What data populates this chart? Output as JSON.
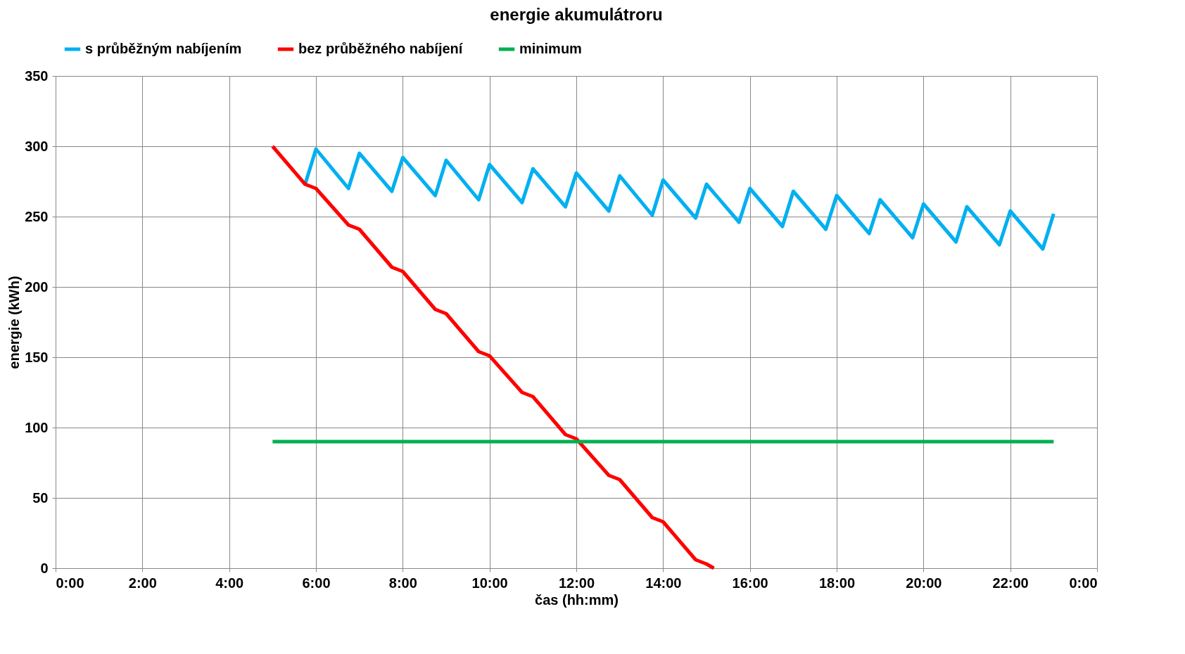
{
  "chart_data": {
    "type": "line",
    "title": "energie akumulátroru",
    "xlabel": "čas (hh:mm)",
    "ylabel": "energie (kWh)",
    "xlim": [
      0,
      24
    ],
    "xticks": [
      {
        "value": 0,
        "label": "0:00"
      },
      {
        "value": 2,
        "label": "2:00"
      },
      {
        "value": 4,
        "label": "4:00"
      },
      {
        "value": 6,
        "label": "6:00"
      },
      {
        "value": 8,
        "label": "8:00"
      },
      {
        "value": 10,
        "label": "10:00"
      },
      {
        "value": 12,
        "label": "12:00"
      },
      {
        "value": 14,
        "label": "14:00"
      },
      {
        "value": 16,
        "label": "16:00"
      },
      {
        "value": 18,
        "label": "18:00"
      },
      {
        "value": 20,
        "label": "20:00"
      },
      {
        "value": 22,
        "label": "22:00"
      },
      {
        "value": 24,
        "label": "0:00"
      }
    ],
    "ylim": [
      0,
      350
    ],
    "yticks": [
      0,
      50,
      100,
      150,
      200,
      250,
      300,
      350
    ],
    "grid": true,
    "legend": "top",
    "marker": "none",
    "line_style": "solid",
    "series": [
      {
        "name": "s průběžným nabíjením",
        "color": "#00b0f0",
        "x": [
          5.75,
          6,
          6.75,
          7,
          7.75,
          8,
          8.75,
          9,
          9.75,
          10,
          10.75,
          11,
          11.75,
          12,
          12.75,
          13,
          13.75,
          14,
          14.75,
          15,
          15.75,
          16,
          16.75,
          17,
          17.75,
          18,
          18.75,
          19,
          19.75,
          20,
          20.75,
          21,
          21.75,
          22,
          22.75,
          23
        ],
        "values": [
          273,
          298,
          270,
          295,
          268,
          292,
          265,
          290,
          262,
          287,
          260,
          284,
          257,
          281,
          254,
          279,
          251,
          276,
          249,
          273,
          246,
          270,
          243,
          268,
          241,
          265,
          238,
          262,
          235,
          259,
          232,
          257,
          230,
          254,
          227,
          252
        ]
      },
      {
        "name": "bez průběžného nabíjení",
        "color": "#ff0000",
        "x": [
          5,
          5.75,
          6,
          6.75,
          7,
          7.75,
          8,
          8.75,
          9,
          9.75,
          10,
          10.75,
          11,
          11.75,
          12,
          12.75,
          13,
          13.75,
          14,
          14.75,
          15,
          15.17
        ],
        "values": [
          300,
          273,
          270,
          244,
          241,
          214,
          211,
          184,
          181,
          154,
          151,
          125,
          122,
          95,
          92,
          66,
          63,
          36,
          33,
          6,
          3,
          0
        ]
      },
      {
        "name": "minimum",
        "color": "#00b050",
        "x": [
          5,
          23
        ],
        "values": [
          90,
          90
        ]
      }
    ]
  }
}
